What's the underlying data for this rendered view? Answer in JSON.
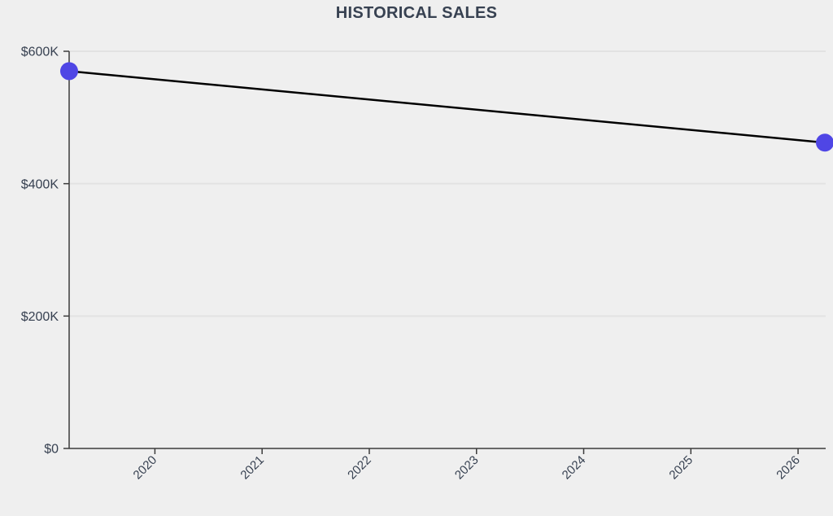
{
  "style": {
    "background": "#efefef",
    "title_color": "#374151",
    "label_color": "#374151",
    "axis_color": "#3c3c3c",
    "grid_color": "#e2e2e2",
    "line_color": "#000000",
    "marker_color": "#4f46e5",
    "marker_radius": 11
  },
  "chart_data": {
    "type": "line",
    "title": "HISTORICAL SALES",
    "series": [
      {
        "points": [
          {
            "x": 2019.2,
            "y": 570000
          },
          {
            "x": 2026.25,
            "y": 462000
          }
        ]
      }
    ],
    "x_ticks": [
      {
        "value": 2020,
        "label": "2020"
      },
      {
        "value": 2021,
        "label": "2021"
      },
      {
        "value": 2022,
        "label": "2022"
      },
      {
        "value": 2023,
        "label": "2023"
      },
      {
        "value": 2024,
        "label": "2024"
      },
      {
        "value": 2025,
        "label": "2025"
      },
      {
        "value": 2026,
        "label": "2026"
      }
    ],
    "y_ticks": [
      {
        "value": 0,
        "label": "$0"
      },
      {
        "value": 200000,
        "label": "$200K"
      },
      {
        "value": 400000,
        "label": "$400K"
      },
      {
        "value": 600000,
        "label": "$600K"
      }
    ],
    "xlim": [
      2019.2,
      2026.25
    ],
    "ylim": [
      0,
      600000
    ],
    "xlabel": "",
    "ylabel": "",
    "grid": "horizontal-only",
    "legend_position": "none"
  }
}
